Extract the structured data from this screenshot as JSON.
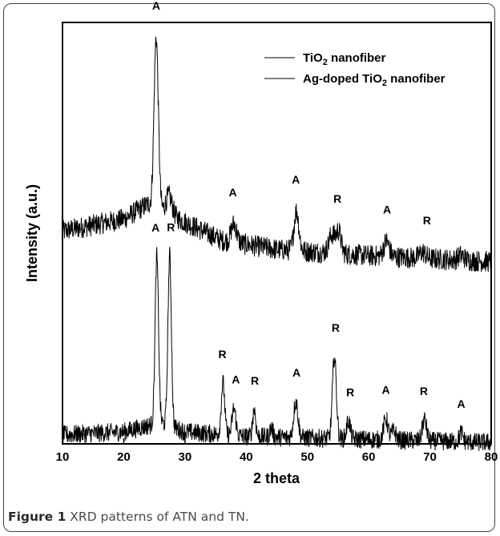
{
  "chart_data": {
    "type": "line",
    "xlabel": "2 theta",
    "ylabel": "Intensity (a.u.)",
    "xlim": [
      10,
      80
    ],
    "x_ticks": [
      "10",
      "20",
      "30",
      "40",
      "50",
      "60",
      "70",
      "80"
    ],
    "y_ticks": "none",
    "grid": false,
    "legend_position": "top-right",
    "legend": [
      {
        "name_main": "TiO",
        "name_sub": "2",
        "name_tail": " nanofiber"
      },
      {
        "name_main": "Ag-doped TiO",
        "name_sub": "2",
        "name_tail": " nanofiber"
      }
    ],
    "series": [
      {
        "baseline": [
          [
            10,
            0.13
          ],
          [
            20,
            0.17
          ],
          [
            24,
            0.22
          ],
          [
            30,
            0.16
          ],
          [
            36,
            0.1
          ],
          [
            45,
            0.07
          ],
          [
            60,
            0.05
          ],
          [
            80,
            0.03
          ]
        ],
        "peaks": [
          [
            25.3,
            0.56,
            0.35
          ],
          [
            27.4,
            0.06,
            0.5
          ],
          [
            38.0,
            0.06,
            0.45
          ],
          [
            48.2,
            0.13,
            0.4
          ],
          [
            54.0,
            0.06,
            0.5
          ],
          [
            55.1,
            0.07,
            0.4
          ],
          [
            62.9,
            0.05,
            0.45
          ],
          [
            68.8,
            0.02,
            0.5
          ],
          [
            75.1,
            0.015,
            0.5
          ]
        ],
        "noise": 0.035,
        "labels": [
          [
            25.3,
            "A"
          ],
          [
            37.8,
            "A"
          ],
          [
            48.1,
            "A"
          ],
          [
            54.9,
            "R"
          ],
          [
            63.0,
            "A"
          ],
          [
            69.5,
            "R"
          ]
        ]
      },
      {
        "baseline": [
          [
            10,
            0.04
          ],
          [
            20,
            0.05
          ],
          [
            24,
            0.07
          ],
          [
            26,
            0.08
          ],
          [
            30,
            0.05
          ],
          [
            40,
            0.035
          ],
          [
            60,
            0.025
          ],
          [
            80,
            0.015
          ]
        ],
        "peaks": [
          [
            25.4,
            0.55,
            0.28
          ],
          [
            27.5,
            0.56,
            0.28
          ],
          [
            36.2,
            0.17,
            0.28
          ],
          [
            38.0,
            0.09,
            0.3
          ],
          [
            41.3,
            0.09,
            0.25
          ],
          [
            44.1,
            0.03,
            0.25
          ],
          [
            48.1,
            0.12,
            0.35
          ],
          [
            54.4,
            0.27,
            0.32
          ],
          [
            56.7,
            0.06,
            0.3
          ],
          [
            62.8,
            0.07,
            0.35
          ],
          [
            64.1,
            0.03,
            0.35
          ],
          [
            69.1,
            0.07,
            0.35
          ],
          [
            75.1,
            0.03,
            0.3
          ]
        ],
        "noise": 0.03,
        "labels": [
          [
            25.2,
            "A"
          ],
          [
            27.7,
            "R"
          ],
          [
            36.1,
            "R"
          ],
          [
            38.3,
            "A"
          ],
          [
            41.4,
            "R"
          ],
          [
            48.2,
            "A"
          ],
          [
            54.6,
            "R"
          ],
          [
            57.0,
            "R"
          ],
          [
            62.8,
            "A"
          ],
          [
            69.0,
            "R"
          ],
          [
            75.1,
            "A"
          ]
        ]
      }
    ]
  },
  "caption": {
    "label": "Figure 1",
    "text": " XRD patterns of ATN and TN."
  }
}
